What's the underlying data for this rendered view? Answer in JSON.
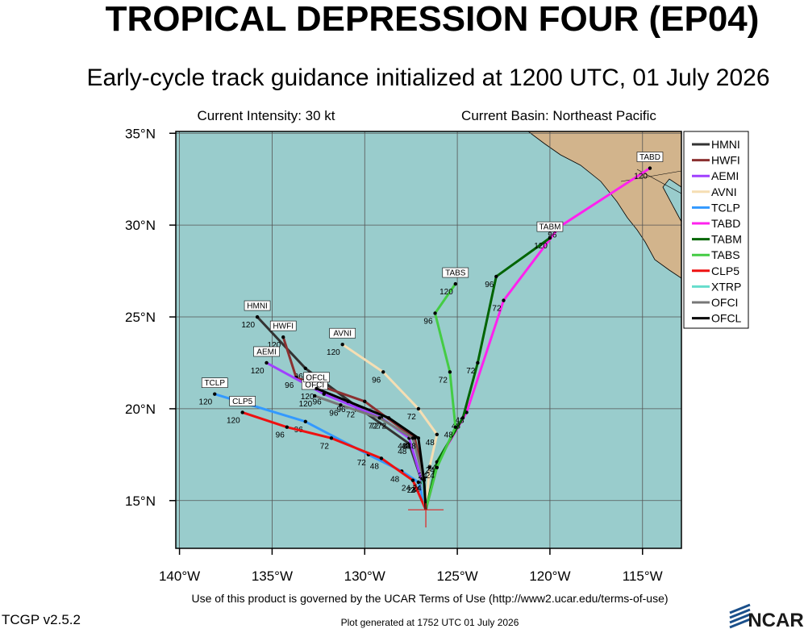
{
  "chart_data": {
    "type": "track-map",
    "title": "TROPICAL DEPRESSION FOUR (EP04)",
    "subtitle": "Early-cycle track guidance initialized at 1200 UTC, 01 July 2026",
    "annotations": [
      "Current Intensity: 30 kt",
      "Current Basin: Northeast Pacific"
    ],
    "footer": "Use of this product is governed by the UCAR Terms of Use (http://www2.ucar.edu/terms-of-use)",
    "version": "TCGP v2.5.2",
    "generated": "Plot generated at 1752 UTC   01 July 2026",
    "logo": "NCAR",
    "xlim": [
      -140.2,
      -112.9
    ],
    "ylim": [
      12.4,
      35.1
    ],
    "xticks": [
      {
        "value": -140,
        "label": "140°W"
      },
      {
        "value": -135,
        "label": "135°W"
      },
      {
        "value": -130,
        "label": "130°W"
      },
      {
        "value": -125,
        "label": "125°W"
      },
      {
        "value": -120,
        "label": "120°W"
      },
      {
        "value": -115,
        "label": "115°W"
      }
    ],
    "yticks": [
      {
        "value": 15,
        "label": "15°N"
      },
      {
        "value": 20,
        "label": "20°N"
      },
      {
        "value": 25,
        "label": "25°N"
      },
      {
        "value": 30,
        "label": "30°N"
      },
      {
        "value": 35,
        "label": "35°N"
      }
    ],
    "initial_position": {
      "x": -126.7,
      "y": 14.5
    },
    "series": [
      {
        "name": "HMNI",
        "color": "#333333",
        "x": [
          -126.7,
          -126.9,
          -127.6,
          -130.4,
          -133.2,
          -135.8
        ],
        "y": [
          14.5,
          16.0,
          18.1,
          20.1,
          22.2,
          25.0
        ],
        "hour_labels": [
          null,
          24,
          48,
          72,
          96,
          120
        ]
      },
      {
        "name": "HWFI",
        "color": "#8b3030",
        "x": [
          -126.7,
          -126.8,
          -127.3,
          -130.0,
          -133.7,
          -134.4
        ],
        "y": [
          14.5,
          16.2,
          18.4,
          20.4,
          21.7,
          23.9
        ],
        "hour_labels": [
          null,
          24,
          48,
          72,
          96,
          120
        ]
      },
      {
        "name": "AEMI",
        "color": "#a040ff",
        "x": [
          -126.7,
          -126.9,
          -127.6,
          -129.1,
          -132.2,
          -135.3
        ],
        "y": [
          14.5,
          16.0,
          18.4,
          19.5,
          20.8,
          22.5
        ],
        "hour_labels": [
          null,
          24,
          48,
          72,
          96,
          120
        ]
      },
      {
        "name": "AVNI",
        "color": "#f5deb3",
        "x": [
          -126.7,
          -126.5,
          -126.1,
          -127.1,
          -129.0,
          -131.2
        ],
        "y": [
          14.5,
          16.8,
          18.6,
          20.0,
          22.0,
          23.5
        ],
        "hour_labels": [
          null,
          24,
          48,
          72,
          96,
          120
        ]
      },
      {
        "name": "TCLP",
        "color": "#3399ff",
        "x": [
          -126.7,
          -127.1,
          -128.0,
          -129.8,
          -133.2,
          -138.1
        ],
        "y": [
          14.5,
          16.0,
          16.6,
          17.5,
          19.3,
          20.8
        ],
        "hour_labels": [
          null,
          24,
          48,
          72,
          96,
          120
        ]
      },
      {
        "name": "TABD",
        "color": "#ff22ee",
        "x": [
          -126.7,
          -126.0,
          -124.5,
          -122.5,
          -119.5,
          -114.6
        ],
        "y": [
          14.5,
          17.2,
          19.8,
          25.9,
          29.9,
          33.1
        ],
        "hour_labels": [
          null,
          24,
          48,
          72,
          96,
          120
        ]
      },
      {
        "name": "TABM",
        "color": "#006400",
        "x": [
          -126.7,
          -126.1,
          -124.7,
          -123.9,
          -122.9,
          -120.0
        ],
        "y": [
          14.5,
          17.1,
          19.5,
          22.5,
          27.2,
          29.3
        ],
        "hour_labels": [
          null,
          24,
          48,
          72,
          96,
          120
        ]
      },
      {
        "name": "TABS",
        "color": "#44cc44",
        "x": [
          -126.7,
          -126.1,
          -125.1,
          -125.4,
          -126.2,
          -125.1
        ],
        "y": [
          14.5,
          16.8,
          19.0,
          22.0,
          25.2,
          26.8
        ],
        "hour_labels": [
          null,
          24,
          48,
          72,
          96,
          120
        ]
      },
      {
        "name": "CLP5",
        "color": "#ee1111",
        "x": [
          -126.7,
          -127.4,
          -129.1,
          -131.8,
          -134.2,
          -136.6
        ],
        "y": [
          14.5,
          16.1,
          17.3,
          18.4,
          19.0,
          19.8
        ],
        "hour_labels": [
          null,
          24,
          48,
          72,
          96,
          120
        ]
      },
      {
        "name": "XTRP",
        "color": "#66ddcc",
        "x": [
          -126.7,
          -126.9
        ],
        "y": [
          14.5,
          16.2
        ],
        "hour_labels": [
          null,
          null
        ]
      },
      {
        "name": "OFCI",
        "color": "#777777",
        "x": [
          -126.7,
          -126.8,
          -127.4,
          -129.2,
          -131.3,
          -132.7
        ],
        "y": [
          14.5,
          16.1,
          18.4,
          19.5,
          20.2,
          20.7
        ],
        "hour_labels": [
          null,
          24,
          48,
          72,
          96,
          120
        ]
      },
      {
        "name": "OFCL",
        "color": "#000000",
        "x": [
          -126.7,
          -126.8,
          -127.1,
          -128.7,
          -130.9,
          -132.6
        ],
        "y": [
          14.5,
          16.1,
          18.4,
          19.5,
          20.4,
          21.1
        ],
        "hour_labels": [
          null,
          24,
          48,
          72,
          96,
          120
        ]
      }
    ]
  }
}
